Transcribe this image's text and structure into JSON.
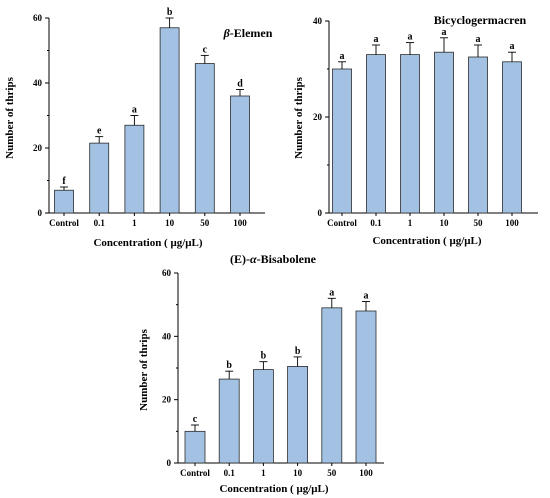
{
  "figure": {
    "background": "#ffffff",
    "bar_fill": "#a3c2e3",
    "bar_stroke": "#2b2b2b"
  },
  "chart_data": [
    {
      "type": "bar",
      "title": "β-Elemen",
      "title_prefix": "β",
      "title_rest": "-Elemen",
      "title_italic_prefix": true,
      "xlabel": "Concentration ( μg/μL)",
      "ylabel": "Number of thrips",
      "categories": [
        "Control",
        "0.1",
        "1",
        "10",
        "50",
        "100"
      ],
      "values": [
        7,
        21.5,
        27,
        57,
        46,
        36
      ],
      "errors": [
        1,
        2,
        3,
        3,
        2.5,
        2
      ],
      "letters": [
        "f",
        "e",
        "a",
        "b",
        "c",
        "d"
      ],
      "ylim": [
        0,
        60
      ],
      "yticks": [
        0,
        20,
        40,
        60
      ],
      "grid": false,
      "legend": "none"
    },
    {
      "type": "bar",
      "title": "Bicyclogermacren",
      "title_prefix": "",
      "title_rest": "Bicyclogermacren",
      "title_italic_prefix": false,
      "xlabel": "Concentration ( μg/μL)",
      "ylabel": "Number of thrips",
      "categories": [
        "Control",
        "0.1",
        "1",
        "10",
        "50",
        "100"
      ],
      "values": [
        30,
        33,
        33,
        33.5,
        32.5,
        31.5
      ],
      "errors": [
        1.5,
        2,
        2.5,
        3,
        2.5,
        2
      ],
      "letters": [
        "a",
        "a",
        "a",
        "a",
        "a",
        "a"
      ],
      "ylim": [
        0,
        40
      ],
      "yticks": [
        0,
        20,
        40
      ],
      "grid": false,
      "legend": "none"
    },
    {
      "type": "bar",
      "title": "(E)-α-Bisabolene",
      "title_prefix": "(E)-",
      "title_italic": "α",
      "title_rest": "-Bisabolene",
      "title_italic_prefix": false,
      "xlabel": "Concentration ( μg/μL)",
      "ylabel": "Number of thrips",
      "categories": [
        "Control",
        "0.1",
        "1",
        "10",
        "50",
        "100"
      ],
      "values": [
        10,
        26.5,
        29.5,
        30.5,
        49,
        48
      ],
      "errors": [
        2,
        2.5,
        2.5,
        3,
        3,
        3
      ],
      "letters": [
        "c",
        "b",
        "b",
        "b",
        "a",
        "a"
      ],
      "ylim": [
        0,
        60
      ],
      "yticks": [
        0,
        20,
        40,
        60
      ],
      "grid": false,
      "legend": "none"
    }
  ]
}
